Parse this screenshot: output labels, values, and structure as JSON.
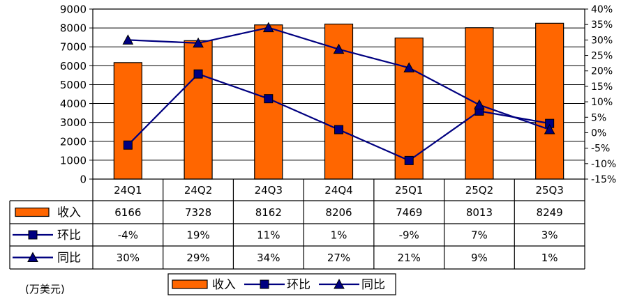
{
  "chart_data": {
    "type": "bar",
    "categories": [
      "24Q1",
      "24Q2",
      "24Q3",
      "24Q4",
      "25Q1",
      "25Q2",
      "25Q3"
    ],
    "series": [
      {
        "name": "收入",
        "type": "bar",
        "axis": "left",
        "color": "#FF6600",
        "values": [
          6166,
          7328,
          8162,
          8206,
          7469,
          8013,
          8249
        ],
        "table_labels": [
          "6166",
          "7328",
          "8162",
          "8206",
          "7469",
          "8013",
          "8249"
        ]
      },
      {
        "name": "环比",
        "type": "line",
        "axis": "right",
        "marker": "square",
        "color": "#000080",
        "values": [
          -4,
          19,
          11,
          1,
          -9,
          7,
          3
        ],
        "table_labels": [
          "-4%",
          "19%",
          "11%",
          "1%",
          "-9%",
          "7%",
          "3%"
        ]
      },
      {
        "name": "同比",
        "type": "line",
        "axis": "right",
        "marker": "triangle",
        "color": "#000080",
        "values": [
          30,
          29,
          34,
          27,
          21,
          9,
          1
        ],
        "table_labels": [
          "30%",
          "29%",
          "34%",
          "27%",
          "21%",
          "9%",
          "1%"
        ]
      }
    ],
    "ylim_left": [
      0,
      9000
    ],
    "yticks_left": [
      "0",
      "1000",
      "2000",
      "3000",
      "4000",
      "5000",
      "6000",
      "7000",
      "8000",
      "9000"
    ],
    "ylim_right": [
      -15,
      40
    ],
    "yticks_right": [
      "-15%",
      "-10%",
      "-5%",
      "0%",
      "5%",
      "10%",
      "15%",
      "20%",
      "25%",
      "30%",
      "35%",
      "40%"
    ],
    "grid": true,
    "legend_position": "bottom",
    "unit_label": "(万美元)",
    "data_table": true
  }
}
